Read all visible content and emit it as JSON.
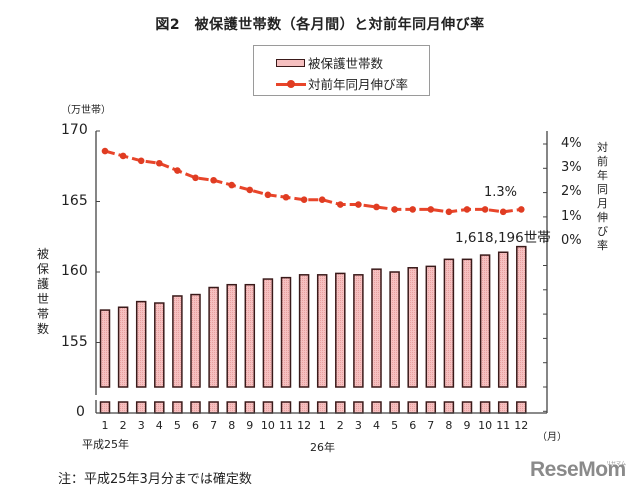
{
  "title": "図2　被保護世帯数（各月間）と対前年同月伸び率",
  "legend": {
    "bar_label": "被保護世帯数",
    "line_label": "対前年同月伸び率"
  },
  "axes": {
    "left_unit": "（万世帯）",
    "left_title": "被保護世帯数",
    "left_ticks": [
      "170",
      "165",
      "160",
      "155",
      "0"
    ],
    "right_title": "対前年同月伸び率",
    "right_ticks": [
      "4%",
      "3%",
      "2%",
      "1%",
      "0%"
    ],
    "x_unit": "（月）",
    "year_labels": [
      "平成25年",
      "26年"
    ]
  },
  "annotations": {
    "last_rate": "1.3%",
    "last_households": "1,618,196世帯"
  },
  "note": "注：平成25年3月分までは確定数",
  "logo": "ReseMom",
  "logo_kana": "リセマム",
  "colors": {
    "bar_fill": "#f6c0c0",
    "bar_border": "#3a1a1a",
    "line": "#e8452a",
    "marker": "#e03c22"
  },
  "chart_data": {
    "type": "bar+line",
    "title": "図2　被保護世帯数（各月間）と対前年同月伸び率",
    "categories": [
      "1",
      "2",
      "3",
      "4",
      "5",
      "6",
      "7",
      "8",
      "9",
      "10",
      "11",
      "12",
      "1",
      "2",
      "3",
      "4",
      "5",
      "6",
      "7",
      "8",
      "9",
      "10",
      "11",
      "12"
    ],
    "category_groups": [
      {
        "label": "平成25年",
        "months": [
          "1",
          "2",
          "3",
          "4",
          "5",
          "6",
          "7",
          "8",
          "9",
          "10",
          "11",
          "12"
        ]
      },
      {
        "label": "26年",
        "months": [
          "1",
          "2",
          "3",
          "4",
          "5",
          "6",
          "7",
          "8",
          "9",
          "10",
          "11",
          "12"
        ]
      }
    ],
    "xlabel": "（月）",
    "series": [
      {
        "name": "被保護世帯数",
        "type": "bar",
        "axis": "left",
        "unit": "万世帯",
        "values": [
          157.3,
          157.5,
          157.9,
          157.8,
          158.3,
          158.4,
          158.9,
          159.1,
          159.1,
          159.5,
          159.6,
          159.8,
          159.8,
          159.9,
          159.8,
          160.2,
          160.0,
          160.3,
          160.4,
          160.9,
          160.9,
          161.2,
          161.4,
          161.8
        ]
      },
      {
        "name": "対前年同月伸び率",
        "type": "line",
        "axis": "right",
        "unit": "%",
        "values": [
          3.7,
          3.5,
          3.3,
          3.2,
          2.9,
          2.6,
          2.5,
          2.3,
          2.1,
          1.9,
          1.8,
          1.7,
          1.7,
          1.5,
          1.5,
          1.4,
          1.3,
          1.3,
          1.3,
          1.2,
          1.3,
          1.3,
          1.2,
          1.3
        ]
      }
    ],
    "ylabel": "被保護世帯数（万世帯）",
    "ylim": [
      155,
      170
    ],
    "y_axis_break": true,
    "y_ticks": [
      0,
      155,
      160,
      165,
      170
    ],
    "y2label": "対前年同月伸び率",
    "y2lim": [
      0,
      4
    ],
    "y2_ticks": [
      "0%",
      "1%",
      "2%",
      "3%",
      "4%"
    ],
    "annotations": [
      {
        "text": "1.3%",
        "series": "対前年同月伸び率",
        "index": 23
      },
      {
        "text": "1,618,196世帯",
        "series": "被保護世帯数",
        "index": 23
      }
    ],
    "legend_position": "top-center",
    "grid": false
  }
}
